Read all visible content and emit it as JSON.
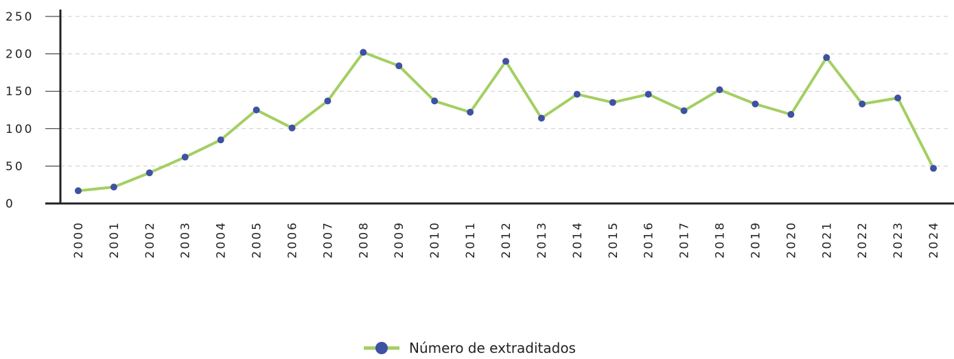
{
  "chart_data": {
    "type": "line",
    "categories": [
      "2000",
      "2001",
      "2002",
      "2003",
      "2004",
      "2005",
      "2006",
      "2007",
      "2008",
      "2009",
      "2010",
      "2011",
      "2012",
      "2013",
      "2014",
      "2015",
      "2016",
      "2017",
      "2018",
      "2019",
      "2020",
      "2021",
      "2022",
      "2023",
      "2024"
    ],
    "series": [
      {
        "name": "Número de extraditados",
        "color": "#a3cf62",
        "marker_color": "#3f51a3",
        "values": [
          17,
          22,
          41,
          62,
          85,
          125,
          101,
          137,
          202,
          184,
          137,
          122,
          190,
          114,
          146,
          135,
          146,
          124,
          152,
          133,
          119,
          195,
          133,
          141,
          47
        ]
      }
    ],
    "ylim": [
      0,
      250
    ],
    "yticks": [
      0,
      50,
      100,
      150,
      200,
      250
    ],
    "grid": true,
    "legend": "bottom"
  }
}
